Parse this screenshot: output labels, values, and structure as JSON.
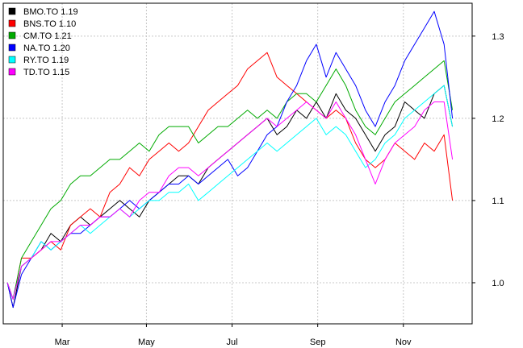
{
  "chart_data": {
    "type": "line",
    "title": "",
    "xlabel": "",
    "ylabel": "",
    "ylim": [
      0.95,
      1.34
    ],
    "y_axis_side": "right",
    "grid": true,
    "legend_position": "top-left",
    "x_ticks": [
      {
        "label": "Mar",
        "day": 42
      },
      {
        "label": "May",
        "day": 102
      },
      {
        "label": "Jul",
        "day": 163
      },
      {
        "label": "Sep",
        "day": 224
      },
      {
        "label": "Nov",
        "day": 285
      }
    ],
    "y_ticks": [
      {
        "label": "1.0",
        "value": 1.0
      },
      {
        "label": "1.1",
        "value": 1.1
      },
      {
        "label": "1.2",
        "value": 1.2
      },
      {
        "label": "1.3",
        "value": 1.3
      }
    ],
    "x": [
      3,
      7,
      13,
      20,
      27,
      34,
      41,
      48,
      55,
      62,
      69,
      76,
      83,
      90,
      97,
      104,
      111,
      118,
      125,
      132,
      139,
      146,
      153,
      160,
      167,
      174,
      181,
      188,
      195,
      202,
      209,
      216,
      223,
      230,
      237,
      244,
      251,
      258,
      265,
      272,
      279,
      286,
      293,
      300,
      307,
      314,
      320
    ],
    "series": [
      {
        "name": "BMO.TO 1.19",
        "color": "#000000",
        "values": [
          1.0,
          0.97,
          1.02,
          1.03,
          1.04,
          1.06,
          1.05,
          1.07,
          1.08,
          1.07,
          1.08,
          1.09,
          1.1,
          1.09,
          1.08,
          1.1,
          1.11,
          1.12,
          1.13,
          1.13,
          1.12,
          1.14,
          1.15,
          1.16,
          1.17,
          1.18,
          1.19,
          1.2,
          1.18,
          1.19,
          1.21,
          1.2,
          1.22,
          1.2,
          1.23,
          1.21,
          1.2,
          1.18,
          1.16,
          1.18,
          1.19,
          1.22,
          1.21,
          1.2,
          1.23,
          1.24,
          1.19
        ]
      },
      {
        "name": "BNS.TO 1.10",
        "color": "#ff0000",
        "values": [
          1.0,
          0.98,
          1.03,
          1.03,
          1.04,
          1.05,
          1.04,
          1.07,
          1.08,
          1.09,
          1.08,
          1.11,
          1.12,
          1.14,
          1.13,
          1.15,
          1.16,
          1.17,
          1.16,
          1.17,
          1.19,
          1.21,
          1.22,
          1.23,
          1.24,
          1.26,
          1.27,
          1.28,
          1.25,
          1.24,
          1.23,
          1.22,
          1.21,
          1.2,
          1.21,
          1.2,
          1.17,
          1.15,
          1.14,
          1.15,
          1.17,
          1.16,
          1.15,
          1.17,
          1.16,
          1.18,
          1.1
        ]
      },
      {
        "name": "CM.TO 1.21",
        "color": "#00aa00",
        "values": [
          1.0,
          0.98,
          1.03,
          1.05,
          1.07,
          1.09,
          1.1,
          1.12,
          1.13,
          1.13,
          1.14,
          1.15,
          1.15,
          1.16,
          1.17,
          1.16,
          1.18,
          1.19,
          1.19,
          1.19,
          1.17,
          1.18,
          1.19,
          1.19,
          1.2,
          1.21,
          1.2,
          1.21,
          1.2,
          1.22,
          1.23,
          1.23,
          1.22,
          1.24,
          1.26,
          1.24,
          1.21,
          1.19,
          1.18,
          1.2,
          1.22,
          1.23,
          1.24,
          1.25,
          1.26,
          1.27,
          1.21
        ]
      },
      {
        "name": "NA.TO 1.20",
        "color": "#0000ff",
        "values": [
          1.0,
          0.97,
          1.01,
          1.03,
          1.05,
          1.04,
          1.05,
          1.06,
          1.06,
          1.07,
          1.08,
          1.08,
          1.09,
          1.1,
          1.09,
          1.1,
          1.11,
          1.12,
          1.12,
          1.13,
          1.12,
          1.13,
          1.14,
          1.15,
          1.13,
          1.14,
          1.16,
          1.18,
          1.19,
          1.22,
          1.24,
          1.27,
          1.29,
          1.25,
          1.28,
          1.26,
          1.24,
          1.21,
          1.19,
          1.22,
          1.24,
          1.27,
          1.29,
          1.31,
          1.33,
          1.29,
          1.2
        ]
      },
      {
        "name": "RY.TO 1.19",
        "color": "#00ffff",
        "values": [
          1.0,
          0.98,
          1.02,
          1.03,
          1.05,
          1.04,
          1.05,
          1.06,
          1.07,
          1.06,
          1.07,
          1.08,
          1.09,
          1.08,
          1.09,
          1.1,
          1.1,
          1.11,
          1.11,
          1.12,
          1.1,
          1.11,
          1.12,
          1.13,
          1.14,
          1.15,
          1.16,
          1.17,
          1.16,
          1.17,
          1.18,
          1.19,
          1.2,
          1.18,
          1.19,
          1.18,
          1.16,
          1.14,
          1.15,
          1.17,
          1.18,
          1.2,
          1.21,
          1.22,
          1.23,
          1.24,
          1.19
        ]
      },
      {
        "name": "TD.TO 1.15",
        "color": "#ff00ff",
        "values": [
          1.0,
          0.98,
          1.02,
          1.03,
          1.04,
          1.05,
          1.05,
          1.06,
          1.07,
          1.07,
          1.08,
          1.08,
          1.09,
          1.08,
          1.1,
          1.11,
          1.11,
          1.13,
          1.14,
          1.14,
          1.13,
          1.14,
          1.15,
          1.16,
          1.17,
          1.18,
          1.19,
          1.2,
          1.19,
          1.2,
          1.21,
          1.22,
          1.21,
          1.2,
          1.22,
          1.2,
          1.18,
          1.15,
          1.12,
          1.15,
          1.17,
          1.18,
          1.19,
          1.21,
          1.22,
          1.22,
          1.15
        ]
      }
    ]
  }
}
